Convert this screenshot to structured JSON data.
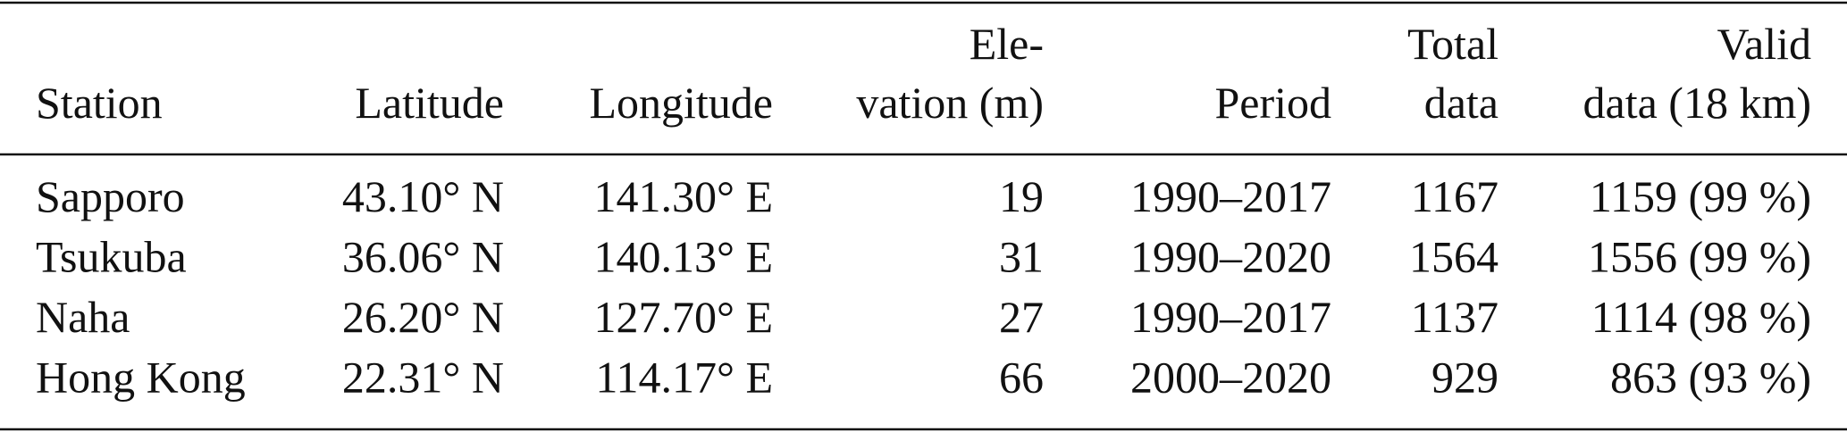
{
  "table": {
    "header": [
      [
        "Station"
      ],
      [
        "Latitude"
      ],
      [
        "Longitude"
      ],
      [
        "Ele-",
        "vation (m)"
      ],
      [
        "Period"
      ],
      [
        "Total",
        "data"
      ],
      [
        "Valid",
        "data (18 km)"
      ]
    ],
    "rows": [
      [
        "Sapporo",
        "43.10° N",
        "141.30° E",
        "19",
        "1990–2017",
        "1167",
        "1159 (99 %)"
      ],
      [
        "Tsukuba",
        "36.06° N",
        "140.13° E",
        "31",
        "1990–2020",
        "1564",
        "1556 (99 %)"
      ],
      [
        "Naha",
        "26.20° N",
        "127.70° E",
        "27",
        "1990–2017",
        "1137",
        "1114 (98 %)"
      ],
      [
        "Hong Kong",
        "22.31° N",
        "114.17° E",
        "66",
        "2000–2020",
        "929",
        "863 (93 %)"
      ]
    ]
  }
}
